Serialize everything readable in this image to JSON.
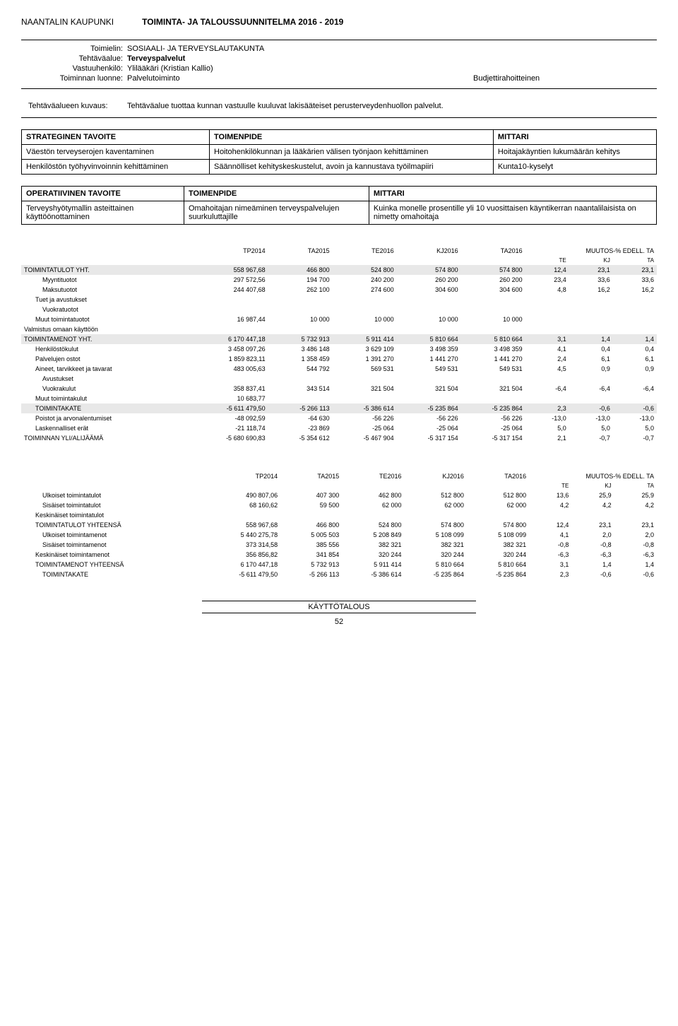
{
  "header": {
    "org": "NAANTALIN KAUPUNKI",
    "title": "TOIMINTA- JA TALOUSSUUNNITELMA 2016 - 2019"
  },
  "info": {
    "rows": [
      {
        "label": "Toimielin:",
        "value": "SOSIAALI- JA TERVEYSLAUTAKUNTA"
      },
      {
        "label": "Tehtäväalue:",
        "value": "Terveyspalvelut",
        "bold": true
      },
      {
        "label": "Vastuuhenkilö:",
        "value": "Ylilääkäri (Kristian Kallio)"
      },
      {
        "label": "Toiminnan luonne:",
        "value": "Palvelutoiminto",
        "extra": "Budjettirahoitteinen"
      }
    ]
  },
  "kuvaus": {
    "label": "Tehtäväalueen kuvaus:",
    "text": "Tehtäväalue tuottaa kunnan vastuulle kuuluvat lakisääteiset perusterveydenhuollon palvelut."
  },
  "strateginen": {
    "headers": [
      "STRATEGINEN TAVOITE",
      "TOIMENPIDE",
      "MITTARI"
    ],
    "rows": [
      [
        "Väestön terveyserojen kaventaminen",
        "Hoitohenkilökunnan ja lääkärien välisen työnjaon kehittäminen",
        "Hoitajakäyntien lukumäärän kehitys"
      ],
      [
        "Henkilöstön työhyvinvoinnin kehittäminen",
        "Säännölliset kehityskeskustelut, avoin ja kannustava työilmapiiri",
        "Kunta10-kyselyt"
      ]
    ]
  },
  "operatiivinen": {
    "headers": [
      "OPERATIIVINEN TAVOITE",
      "TOIMENPIDE",
      "MITTARI"
    ],
    "rows": [
      [
        "Terveyshyötymallin asteittainen käyttöönottaminen",
        "Omahoitajan nimeäminen terveyspalvelujen suurkuluttajille",
        "Kuinka monelle prosentille yli 10 vuosittaisen käyntikerran naantalilaisista on nimetty omahoitaja"
      ]
    ]
  },
  "fin1": {
    "cols": [
      "",
      "TP2014",
      "TA2015",
      "TE2016",
      "KJ2016",
      "TA2016",
      "",
      "",
      ""
    ],
    "muutos_label": "MUUTOS-% EDELL. TA",
    "sub": [
      "TE",
      "KJ",
      "TA"
    ],
    "rows": [
      {
        "label": "TOIMINTATULOT YHT.",
        "cls": "shade indent0",
        "v": [
          "558 967,68",
          "466 800",
          "524 800",
          "574 800",
          "574 800",
          "12,4",
          "23,1",
          "23,1"
        ]
      },
      {
        "label": "Myyntituotot",
        "cls": "indent2",
        "v": [
          "297 572,56",
          "194 700",
          "240 200",
          "260 200",
          "260 200",
          "23,4",
          "33,6",
          "33,6"
        ]
      },
      {
        "label": "Maksutuotot",
        "cls": "indent2",
        "v": [
          "244 407,68",
          "262 100",
          "274 600",
          "304 600",
          "304 600",
          "4,8",
          "16,2",
          "16,2"
        ]
      },
      {
        "label": "Tuet ja avustukset",
        "cls": "indent1",
        "v": [
          "",
          "",
          "",
          "",
          "",
          "",
          "",
          ""
        ]
      },
      {
        "label": "Vuokratuotot",
        "cls": "indent2",
        "v": [
          "",
          "",
          "",
          "",
          "",
          "",
          "",
          ""
        ]
      },
      {
        "label": "Muut toimintatuotot",
        "cls": "indent1",
        "v": [
          "16 987,44",
          "10 000",
          "10 000",
          "10 000",
          "10 000",
          "",
          "",
          ""
        ]
      },
      {
        "label": "Valmistus omaan käyttöön",
        "cls": "indent0",
        "v": [
          "",
          "",
          "",
          "",
          "",
          "",
          "",
          ""
        ]
      },
      {
        "label": "TOIMINTAMENOT YHT.",
        "cls": "shade indent0",
        "v": [
          "6 170 447,18",
          "5 732 913",
          "5 911 414",
          "5 810 664",
          "5 810 664",
          "3,1",
          "1,4",
          "1,4"
        ]
      },
      {
        "label": "Henkilöstökulut",
        "cls": "indent1",
        "v": [
          "3 458 097,26",
          "3 486 148",
          "3 629 109",
          "3 498 359",
          "3 498 359",
          "4,1",
          "0,4",
          "0,4"
        ]
      },
      {
        "label": "Palvelujen ostot",
        "cls": "indent1",
        "v": [
          "1 859 823,11",
          "1 358 459",
          "1 391 270",
          "1 441 270",
          "1 441 270",
          "2,4",
          "6,1",
          "6,1"
        ]
      },
      {
        "label": "Aineet, tarvikkeet ja tavarat",
        "cls": "indent1",
        "v": [
          "483 005,63",
          "544 792",
          "569 531",
          "549 531",
          "549 531",
          "4,5",
          "0,9",
          "0,9"
        ]
      },
      {
        "label": "Avustukset",
        "cls": "indent2",
        "v": [
          "",
          "",
          "",
          "",
          "",
          "",
          "",
          ""
        ]
      },
      {
        "label": "Vuokrakulut",
        "cls": "indent2",
        "v": [
          "358 837,41",
          "343 514",
          "321 504",
          "321 504",
          "321 504",
          "-6,4",
          "-6,4",
          "-6,4"
        ]
      },
      {
        "label": "Muut toimintakulut",
        "cls": "indent1",
        "v": [
          "10 683,77",
          "",
          "",
          "",
          "",
          "",
          "",
          ""
        ]
      },
      {
        "label": "TOIMINTAKATE",
        "cls": "shade indent1",
        "v": [
          "-5 611 479,50",
          "-5 266 113",
          "-5 386 614",
          "-5 235 864",
          "-5 235 864",
          "2,3",
          "-0,6",
          "-0,6"
        ]
      },
      {
        "label": "Poistot ja arvonalentumiset",
        "cls": "indent1",
        "v": [
          "-48 092,59",
          "-64 630",
          "-56 226",
          "-56 226",
          "-56 226",
          "-13,0",
          "-13,0",
          "-13,0"
        ]
      },
      {
        "label": "Laskennalliset erät",
        "cls": "indent1",
        "v": [
          "-21 118,74",
          "-23 869",
          "-25 064",
          "-25 064",
          "-25 064",
          "5,0",
          "5,0",
          "5,0"
        ]
      },
      {
        "label": "TOIMINNAN YLI/ALIJÄÄMÄ",
        "cls": "indent0",
        "v": [
          "-5 680 690,83",
          "-5 354 612",
          "-5 467 904",
          "-5 317 154",
          "-5 317 154",
          "2,1",
          "-0,7",
          "-0,7"
        ]
      }
    ]
  },
  "fin2": {
    "cols": [
      "",
      "TP2014",
      "TA2015",
      "TE2016",
      "KJ2016",
      "TA2016",
      "",
      "",
      ""
    ],
    "muutos_label": "MUUTOS-% EDELL. TA",
    "sub": [
      "TE",
      "KJ",
      "TA"
    ],
    "rows": [
      {
        "label": "Ulkoiset toimintatulot",
        "cls": "indent2",
        "v": [
          "490 807,06",
          "407 300",
          "462 800",
          "512 800",
          "512 800",
          "13,6",
          "25,9",
          "25,9"
        ]
      },
      {
        "label": "Sisäiset toimintatulot",
        "cls": "indent2",
        "v": [
          "68 160,62",
          "59 500",
          "62 000",
          "62 000",
          "62 000",
          "4,2",
          "4,2",
          "4,2"
        ]
      },
      {
        "label": "Keskinäiset toimintatulot",
        "cls": "indent1",
        "v": [
          "",
          "",
          "",
          "",
          "",
          "",
          "",
          ""
        ]
      },
      {
        "label": "TOIMINTATULOT YHTEENSÄ",
        "cls": "indent1",
        "v": [
          "558 967,68",
          "466 800",
          "524 800",
          "574 800",
          "574 800",
          "12,4",
          "23,1",
          "23,1"
        ]
      },
      {
        "label": "Ulkoiset toimintamenot",
        "cls": "indent2",
        "v": [
          "5 440 275,78",
          "5 005 503",
          "5 208 849",
          "5 108 099",
          "5 108 099",
          "4,1",
          "2,0",
          "2,0"
        ]
      },
      {
        "label": "Sisäiset toimintamenot",
        "cls": "indent2",
        "v": [
          "373 314,58",
          "385 556",
          "382 321",
          "382 321",
          "382 321",
          "-0,8",
          "-0,8",
          "-0,8"
        ]
      },
      {
        "label": "Keskinäiset toimintamenot",
        "cls": "indent1",
        "v": [
          "356 856,82",
          "341 854",
          "320 244",
          "320 244",
          "320 244",
          "-6,3",
          "-6,3",
          "-6,3"
        ]
      },
      {
        "label": "TOIMINTAMENOT YHTEENSÄ",
        "cls": "indent1",
        "v": [
          "6 170 447,18",
          "5 732 913",
          "5 911 414",
          "5 810 664",
          "5 810 664",
          "3,1",
          "1,4",
          "1,4"
        ]
      },
      {
        "label": "TOIMINTAKATE",
        "cls": "indent2",
        "v": [
          "-5 611 479,50",
          "-5 266 113",
          "-5 386 614",
          "-5 235 864",
          "-5 235 864",
          "2,3",
          "-0,6",
          "-0,6"
        ]
      }
    ]
  },
  "footer": {
    "section": "KÄYTTÖTALOUS",
    "page": "52"
  }
}
